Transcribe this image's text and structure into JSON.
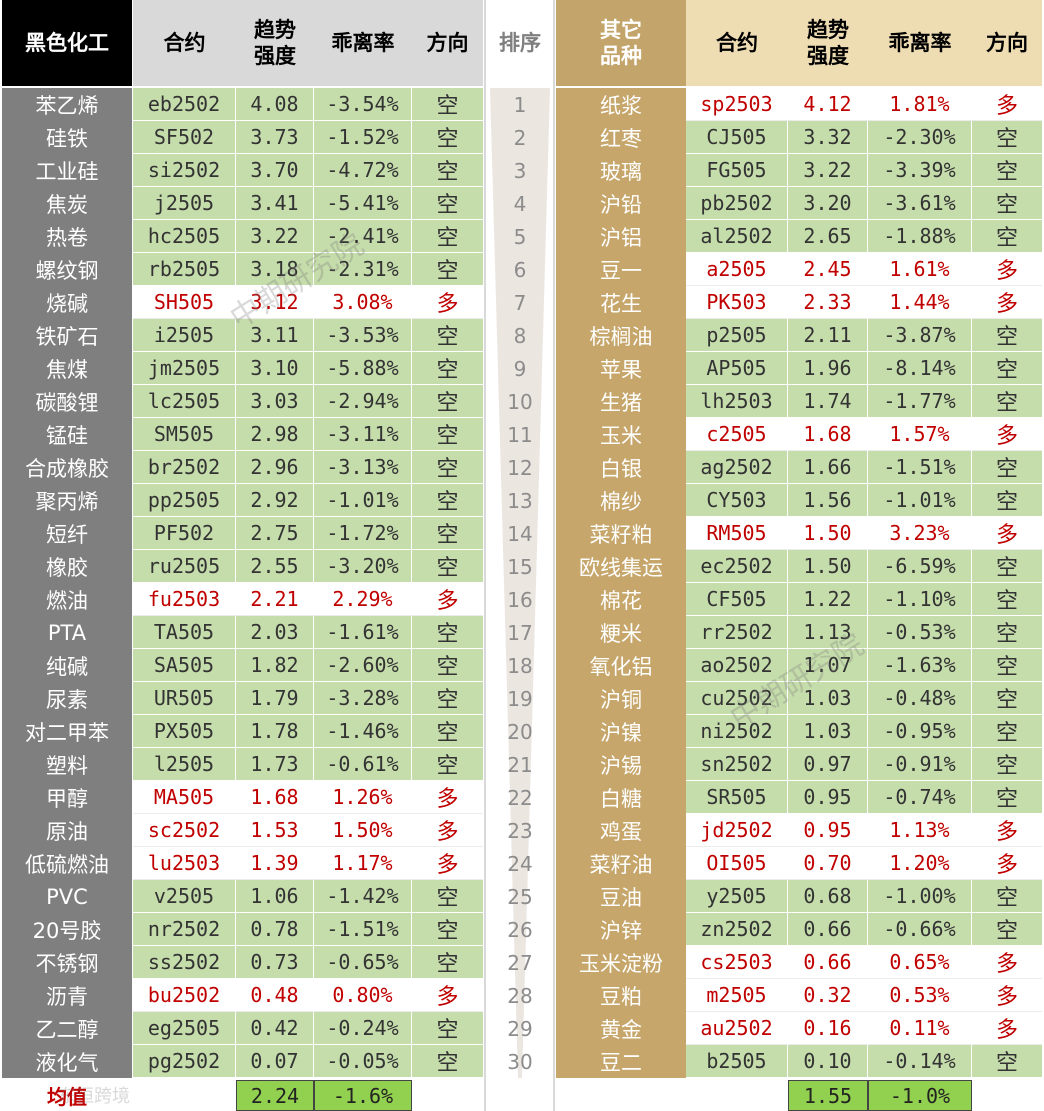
{
  "colors": {
    "header_left": "#000000",
    "header_right": "#c3a46a",
    "name_left": "#7f7f7f",
    "name_right": "#c6a66a",
    "short_fill": "#c5dcab",
    "long_text": "#c00000",
    "avg_fill": "#92d050"
  },
  "headers": {
    "left_group": "黑色化工",
    "contract": "合约",
    "strength": "趋势\n强度",
    "deviation": "乖离率",
    "direction": "方向",
    "rank": "排序",
    "right_group": "其它\n品种"
  },
  "left_rows": [
    {
      "name": "苯乙烯",
      "code": "eb2502",
      "strength": "4.08",
      "dev": "-3.54%",
      "dir": "空"
    },
    {
      "name": "硅铁",
      "code": "SF502",
      "strength": "3.73",
      "dev": "-1.52%",
      "dir": "空"
    },
    {
      "name": "工业硅",
      "code": "si2502",
      "strength": "3.70",
      "dev": "-4.72%",
      "dir": "空"
    },
    {
      "name": "焦炭",
      "code": "j2505",
      "strength": "3.41",
      "dev": "-5.41%",
      "dir": "空"
    },
    {
      "name": "热卷",
      "code": "hc2505",
      "strength": "3.22",
      "dev": "-2.41%",
      "dir": "空"
    },
    {
      "name": "螺纹钢",
      "code": "rb2505",
      "strength": "3.18",
      "dev": "-2.31%",
      "dir": "空"
    },
    {
      "name": "烧碱",
      "code": "SH505",
      "strength": "3.12",
      "dev": "3.08%",
      "dir": "多"
    },
    {
      "name": "铁矿石",
      "code": "i2505",
      "strength": "3.11",
      "dev": "-3.53%",
      "dir": "空"
    },
    {
      "name": "焦煤",
      "code": "jm2505",
      "strength": "3.10",
      "dev": "-5.88%",
      "dir": "空"
    },
    {
      "name": "碳酸锂",
      "code": "lc2505",
      "strength": "3.03",
      "dev": "-2.94%",
      "dir": "空"
    },
    {
      "name": "锰硅",
      "code": "SM505",
      "strength": "2.98",
      "dev": "-3.11%",
      "dir": "空"
    },
    {
      "name": "合成橡胶",
      "code": "br2502",
      "strength": "2.96",
      "dev": "-3.13%",
      "dir": "空"
    },
    {
      "name": "聚丙烯",
      "code": "pp2505",
      "strength": "2.92",
      "dev": "-1.01%",
      "dir": "空"
    },
    {
      "name": "短纤",
      "code": "PF502",
      "strength": "2.75",
      "dev": "-1.72%",
      "dir": "空"
    },
    {
      "name": "橡胶",
      "code": "ru2505",
      "strength": "2.55",
      "dev": "-3.20%",
      "dir": "空"
    },
    {
      "name": "燃油",
      "code": "fu2503",
      "strength": "2.21",
      "dev": "2.29%",
      "dir": "多"
    },
    {
      "name": "PTA",
      "code": "TA505",
      "strength": "2.03",
      "dev": "-1.61%",
      "dir": "空"
    },
    {
      "name": "纯碱",
      "code": "SA505",
      "strength": "1.82",
      "dev": "-2.60%",
      "dir": "空"
    },
    {
      "name": "尿素",
      "code": "UR505",
      "strength": "1.79",
      "dev": "-3.28%",
      "dir": "空"
    },
    {
      "name": "对二甲苯",
      "code": "PX505",
      "strength": "1.78",
      "dev": "-1.46%",
      "dir": "空"
    },
    {
      "name": "塑料",
      "code": "l2505",
      "strength": "1.73",
      "dev": "-0.61%",
      "dir": "空"
    },
    {
      "name": "甲醇",
      "code": "MA505",
      "strength": "1.68",
      "dev": "1.26%",
      "dir": "多"
    },
    {
      "name": "原油",
      "code": "sc2502",
      "strength": "1.53",
      "dev": "1.50%",
      "dir": "多"
    },
    {
      "name": "低硫燃油",
      "code": "lu2503",
      "strength": "1.39",
      "dev": "1.17%",
      "dir": "多"
    },
    {
      "name": "PVC",
      "code": "v2505",
      "strength": "1.06",
      "dev": "-1.42%",
      "dir": "空"
    },
    {
      "name": "20号胶",
      "code": "nr2502",
      "strength": "0.78",
      "dev": "-1.51%",
      "dir": "空"
    },
    {
      "name": "不锈钢",
      "code": "ss2502",
      "strength": "0.73",
      "dev": "-0.65%",
      "dir": "空"
    },
    {
      "name": "沥青",
      "code": "bu2502",
      "strength": "0.48",
      "dev": "0.80%",
      "dir": "多"
    },
    {
      "name": "乙二醇",
      "code": "eg2505",
      "strength": "0.42",
      "dev": "-0.24%",
      "dir": "空"
    },
    {
      "name": "液化气",
      "code": "pg2502",
      "strength": "0.07",
      "dev": "-0.05%",
      "dir": "空"
    }
  ],
  "ranks": [
    "1",
    "2",
    "3",
    "4",
    "5",
    "6",
    "7",
    "8",
    "9",
    "10",
    "11",
    "12",
    "13",
    "14",
    "15",
    "16",
    "17",
    "18",
    "19",
    "20",
    "21",
    "22",
    "23",
    "24",
    "25",
    "26",
    "27",
    "28",
    "29",
    "30"
  ],
  "right_rows": [
    {
      "name": "纸浆",
      "code": "sp2503",
      "strength": "4.12",
      "dev": "1.81%",
      "dir": "多"
    },
    {
      "name": "红枣",
      "code": "CJ505",
      "strength": "3.32",
      "dev": "-2.30%",
      "dir": "空"
    },
    {
      "name": "玻璃",
      "code": "FG505",
      "strength": "3.22",
      "dev": "-3.39%",
      "dir": "空"
    },
    {
      "name": "沪铅",
      "code": "pb2502",
      "strength": "3.20",
      "dev": "-3.61%",
      "dir": "空"
    },
    {
      "name": "沪铝",
      "code": "al2502",
      "strength": "2.65",
      "dev": "-1.88%",
      "dir": "空"
    },
    {
      "name": "豆一",
      "code": "a2505",
      "strength": "2.45",
      "dev": "1.61%",
      "dir": "多"
    },
    {
      "name": "花生",
      "code": "PK503",
      "strength": "2.33",
      "dev": "1.44%",
      "dir": "多"
    },
    {
      "name": "棕榈油",
      "code": "p2505",
      "strength": "2.11",
      "dev": "-3.87%",
      "dir": "空"
    },
    {
      "name": "苹果",
      "code": "AP505",
      "strength": "1.96",
      "dev": "-8.14%",
      "dir": "空"
    },
    {
      "name": "生猪",
      "code": "lh2503",
      "strength": "1.74",
      "dev": "-1.77%",
      "dir": "空"
    },
    {
      "name": "玉米",
      "code": "c2505",
      "strength": "1.68",
      "dev": "1.57%",
      "dir": "多"
    },
    {
      "name": "白银",
      "code": "ag2502",
      "strength": "1.66",
      "dev": "-1.51%",
      "dir": "空"
    },
    {
      "name": "棉纱",
      "code": "CY503",
      "strength": "1.56",
      "dev": "-1.01%",
      "dir": "空"
    },
    {
      "name": "菜籽粕",
      "code": "RM505",
      "strength": "1.50",
      "dev": "3.23%",
      "dir": "多"
    },
    {
      "name": "欧线集运",
      "code": "ec2502",
      "strength": "1.50",
      "dev": "-6.59%",
      "dir": "空"
    },
    {
      "name": "棉花",
      "code": "CF505",
      "strength": "1.22",
      "dev": "-1.10%",
      "dir": "空"
    },
    {
      "name": "粳米",
      "code": "rr2502",
      "strength": "1.13",
      "dev": "-0.53%",
      "dir": "空"
    },
    {
      "name": "氧化铝",
      "code": "ao2502",
      "strength": "1.07",
      "dev": "-1.63%",
      "dir": "空"
    },
    {
      "name": "沪铜",
      "code": "cu2502",
      "strength": "1.03",
      "dev": "-0.48%",
      "dir": "空"
    },
    {
      "name": "沪镍",
      "code": "ni2502",
      "strength": "1.03",
      "dev": "-0.95%",
      "dir": "空"
    },
    {
      "name": "沪锡",
      "code": "sn2502",
      "strength": "0.97",
      "dev": "-0.91%",
      "dir": "空"
    },
    {
      "name": "白糖",
      "code": "SR505",
      "strength": "0.95",
      "dev": "-0.74%",
      "dir": "空"
    },
    {
      "name": "鸡蛋",
      "code": "jd2502",
      "strength": "0.95",
      "dev": "1.13%",
      "dir": "多"
    },
    {
      "name": "菜籽油",
      "code": "OI505",
      "strength": "0.70",
      "dev": "1.20%",
      "dir": "多"
    },
    {
      "name": "豆油",
      "code": "y2505",
      "strength": "0.68",
      "dev": "-1.00%",
      "dir": "空"
    },
    {
      "name": "沪锌",
      "code": "zn2502",
      "strength": "0.66",
      "dev": "-0.66%",
      "dir": "空"
    },
    {
      "name": "玉米淀粉",
      "code": "cs2503",
      "strength": "0.66",
      "dev": "0.65%",
      "dir": "多"
    },
    {
      "name": "豆粕",
      "code": "m2505",
      "strength": "0.32",
      "dev": "0.53%",
      "dir": "多"
    },
    {
      "name": "黄金",
      "code": "au2502",
      "strength": "0.16",
      "dev": "0.11%",
      "dir": "多"
    },
    {
      "name": "豆二",
      "code": "b2505",
      "strength": "0.10",
      "dev": "-0.14%",
      "dir": "空"
    }
  ],
  "footer": {
    "label": "均值",
    "left_strength_avg": "2.24",
    "left_dev_avg": "-1.6%",
    "right_strength_avg": "1.55",
    "right_dev_avg": "-1.0%"
  },
  "watermarks": [
    "中期研究院",
    "中期研究院",
    "东恒跨境"
  ]
}
